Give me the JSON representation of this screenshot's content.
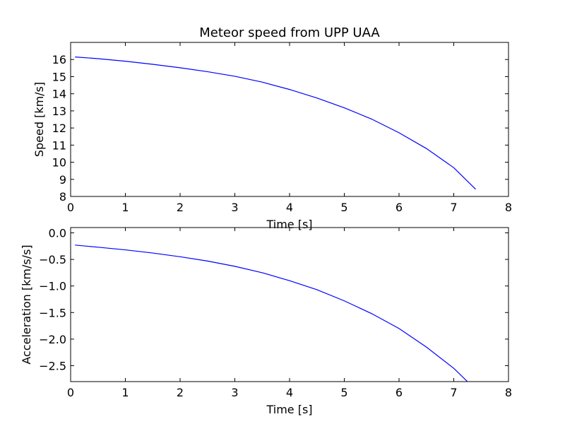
{
  "chart_data": [
    {
      "type": "line",
      "title": "Meteor speed from  UPP UAA",
      "xlabel": "Time [s]",
      "ylabel": "Speed [km/s]",
      "xlim": [
        0,
        8
      ],
      "ylim": [
        8,
        17
      ],
      "xticks": [
        0,
        1,
        2,
        3,
        4,
        5,
        6,
        7,
        8
      ],
      "xtick_labels": [
        "0",
        "1",
        "2",
        "3",
        "4",
        "5",
        "6",
        "7",
        "8"
      ],
      "yticks": [
        8,
        9,
        10,
        11,
        12,
        13,
        14,
        15,
        16
      ],
      "ytick_labels": [
        "8",
        "9",
        "10",
        "11",
        "12",
        "13",
        "14",
        "15",
        "16"
      ],
      "grid": false,
      "series": [
        {
          "color": "#0000ff",
          "x": [
            0.08,
            0.5,
            1.0,
            1.5,
            2.0,
            2.5,
            3.0,
            3.5,
            4.0,
            4.5,
            5.0,
            5.5,
            6.0,
            6.5,
            7.0,
            7.4
          ],
          "y": [
            16.15,
            16.05,
            15.9,
            15.72,
            15.52,
            15.29,
            15.02,
            14.68,
            14.25,
            13.75,
            13.18,
            12.52,
            11.72,
            10.8,
            9.68,
            8.42
          ]
        }
      ]
    },
    {
      "type": "line",
      "title": "",
      "xlabel": "Time [s]",
      "ylabel": "Acceleration [km/s/s]",
      "xlim": [
        0,
        8
      ],
      "ylim": [
        -2.8,
        0.1
      ],
      "xticks": [
        0,
        1,
        2,
        3,
        4,
        5,
        6,
        7,
        8
      ],
      "xtick_labels": [
        "0",
        "1",
        "2",
        "3",
        "4",
        "5",
        "6",
        "7",
        "8"
      ],
      "yticks": [
        0.0,
        -0.5,
        -1.0,
        -1.5,
        -2.0,
        -2.5
      ],
      "ytick_labels": [
        "0.0",
        "−0.5",
        "−1.0",
        "−1.5",
        "−2.0",
        "−2.5"
      ],
      "grid": false,
      "series": [
        {
          "color": "#0000ff",
          "x": [
            0.08,
            0.5,
            1.0,
            1.5,
            2.0,
            2.5,
            3.0,
            3.5,
            4.0,
            4.5,
            5.0,
            5.5,
            6.0,
            6.5,
            7.0,
            7.25
          ],
          "y": [
            -0.23,
            -0.27,
            -0.32,
            -0.38,
            -0.45,
            -0.53,
            -0.63,
            -0.75,
            -0.9,
            -1.07,
            -1.28,
            -1.52,
            -1.8,
            -2.15,
            -2.55,
            -2.8
          ]
        }
      ]
    }
  ]
}
